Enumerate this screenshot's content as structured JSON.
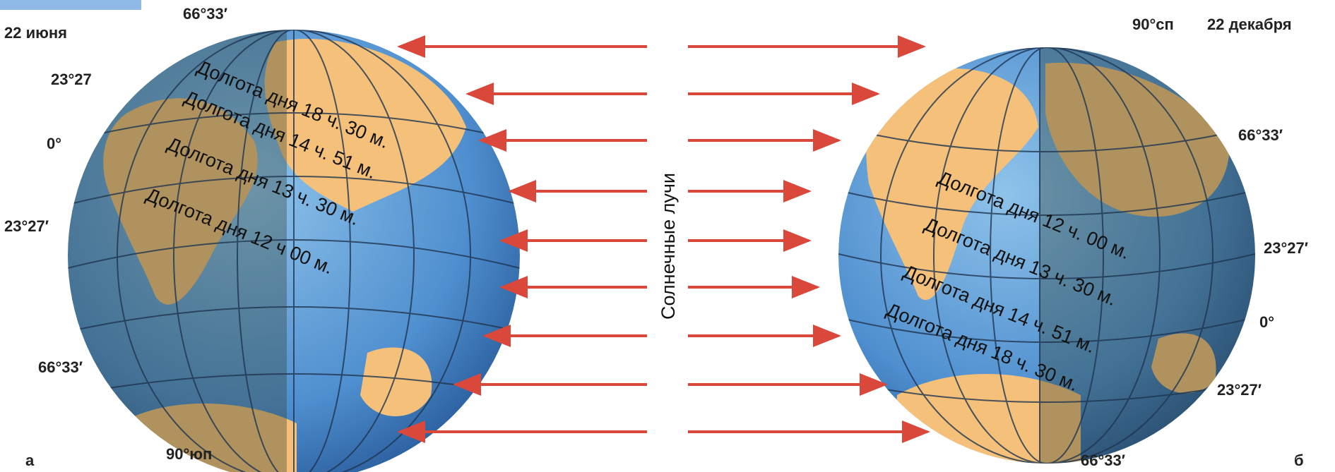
{
  "left_globe": {
    "date": "22 июня",
    "letter": "а",
    "top_latitude": "66°33′",
    "latitudes": [
      "23°27",
      "0°",
      "23°27′",
      "66°33′"
    ],
    "pole": "90°юп",
    "day_lengths": [
      "Долгота дня 18 ч. 30 м.",
      "Долгота дня 14 ч. 51 м.",
      "Долгота дня 13 ч. 30 м.",
      "Долгота дня 12 ч 00 м."
    ]
  },
  "rays_label": "Солнечные лучи",
  "right_globe": {
    "pole": "90°сп",
    "date": "22 декабря",
    "latitudes": [
      "66°33′",
      "23°27′",
      "0°",
      "23°27′"
    ],
    "bottom_latitude": "66°33′",
    "letter": "б",
    "day_lengths": [
      "Долгота дня 12 ч. 00 м.",
      "Долгота дня 13 ч. 30 м.",
      "Долгота дня 14 ч. 51 м.",
      "Долгота дня 18 ч. 30 м."
    ]
  }
}
